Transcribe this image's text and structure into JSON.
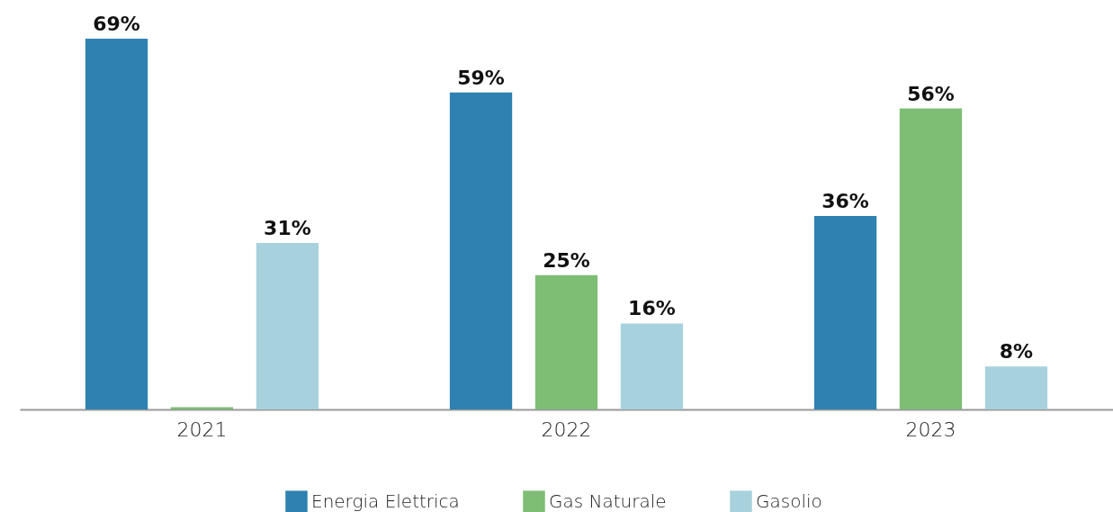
{
  "chart_data": {
    "type": "bar",
    "categories": [
      "2021",
      "2022",
      "2023"
    ],
    "series": [
      {
        "name": "Energia Elettrica",
        "color": "#2e81b1",
        "values": [
          69,
          59,
          36
        ],
        "value_labels": [
          "69%",
          "59%",
          "36%"
        ]
      },
      {
        "name": "Gas Naturale",
        "color": "#7dbd74",
        "values": [
          0.4,
          25,
          56
        ],
        "value_labels": [
          null,
          "25%",
          "56%"
        ]
      },
      {
        "name": "Gasolio",
        "color": "#a7d2dd",
        "values": [
          31,
          16,
          8
        ],
        "value_labels": [
          "31%",
          "16%",
          "8%"
        ]
      }
    ],
    "legend": "bottom"
  }
}
